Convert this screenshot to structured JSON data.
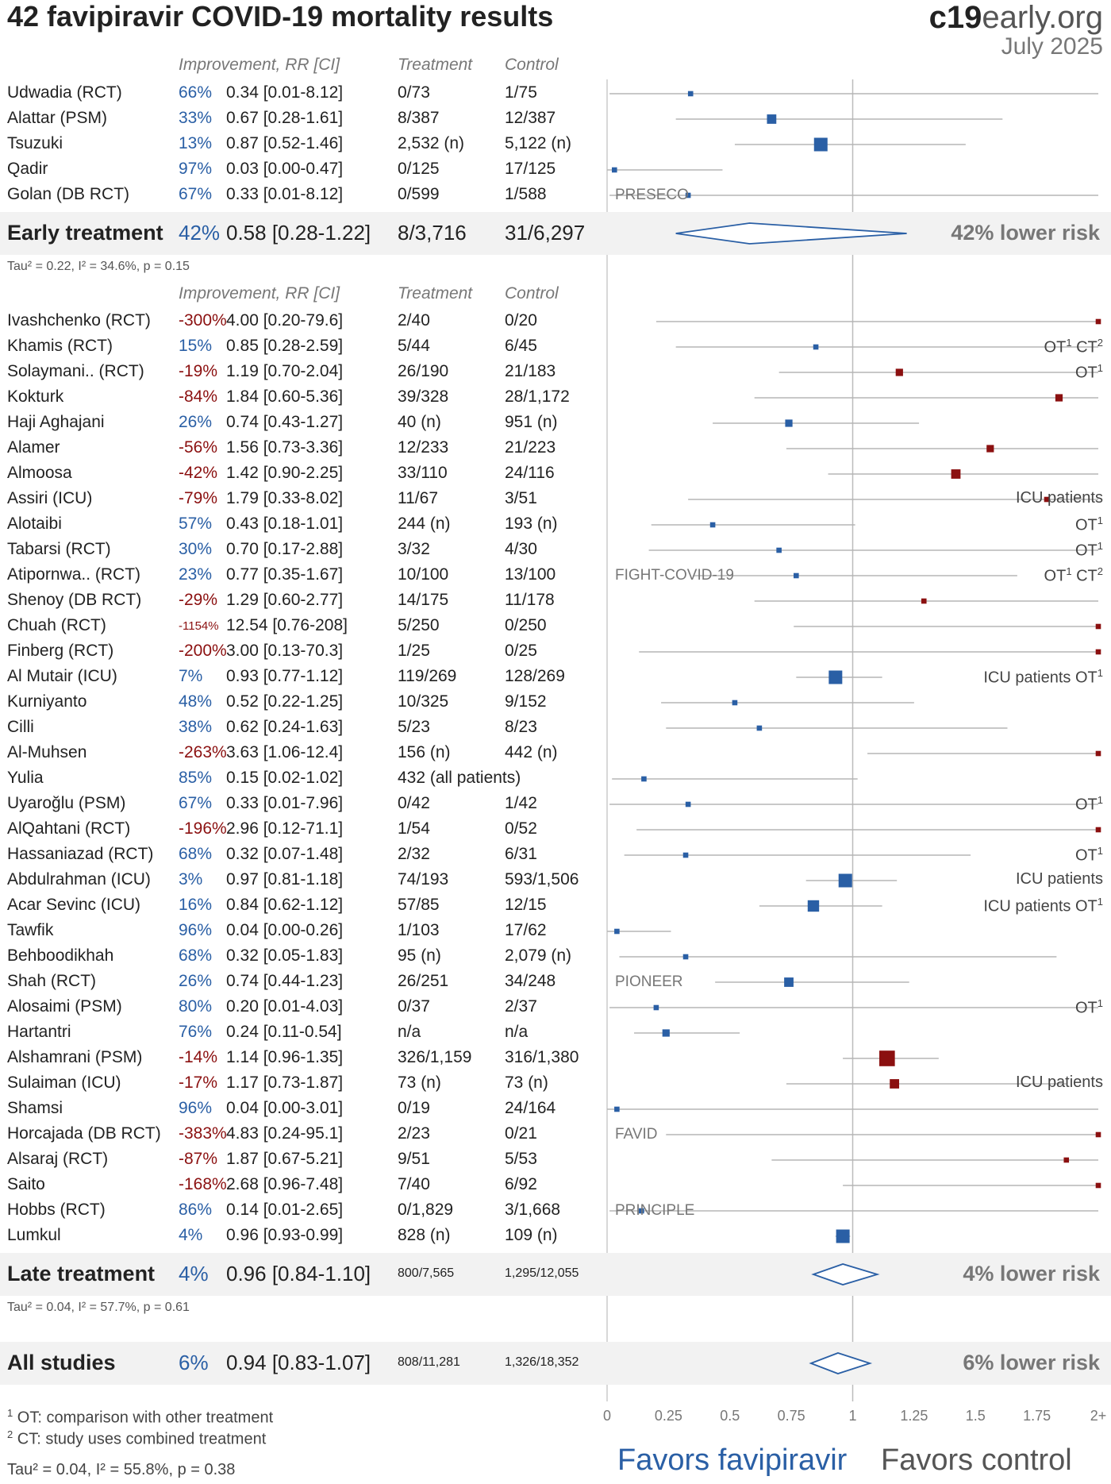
{
  "title": "42 favipiravir COVID-19 mortality results",
  "logo": {
    "bold": "c19",
    "rest": "early.org"
  },
  "date": "July 2025",
  "headers": {
    "improvement": "Improvement, RR [CI]",
    "treatment": "Treatment",
    "control": "Control"
  },
  "early_stat": "Tau² = 0.22, I² = 34.6%, p = 0.15",
  "late_stat": "Tau² = 0.04, I² = 57.7%, p = 0.61",
  "all_stat": "Tau² = 0.04, I² = 55.8%, p = 0.38",
  "footnotes": [
    "¹ OT: comparison with other treatment",
    "² CT: study uses combined treatment"
  ],
  "favors_left": "Favors favipiravir",
  "favors_right": "Favors control",
  "colors": {
    "favorable": "#2a5fa5",
    "unfavorable": "#8b1010",
    "band": "#f2f2f2"
  },
  "chart_data": {
    "type": "forest",
    "title": "42 favipiravir COVID-19 mortality results",
    "xlabel": "",
    "xlim": [
      0,
      2
    ],
    "x_ticks": [
      "0",
      "0.25",
      "0.5",
      "0.75",
      "1",
      "1.25",
      "1.5",
      "1.75",
      "2+"
    ],
    "groups": [
      {
        "name": "Early treatment",
        "summary": {
          "label": "Early treatment",
          "pct": "42%",
          "rr_text": "0.58 [0.28-1.22]",
          "treatment": "8/3,716",
          "control": "31/6,297",
          "rr": 0.58,
          "lo": 0.28,
          "hi": 1.22,
          "lower_risk": "42% lower risk"
        },
        "studies": [
          {
            "name": "Udwadia (RCT)",
            "pct": "66%",
            "rr_text": "0.34 [0.01-8.12]",
            "treatment": "0/73",
            "control": "1/75",
            "rr": 0.34,
            "lo": 0.01,
            "hi": 8.12,
            "weight": 1,
            "note": "",
            "trial": ""
          },
          {
            "name": "Alattar (PSM)",
            "pct": "33%",
            "rr_text": "0.67 [0.28-1.61]",
            "treatment": "8/387",
            "control": "12/387",
            "rr": 0.67,
            "lo": 0.28,
            "hi": 1.61,
            "weight": 3,
            "note": "",
            "trial": ""
          },
          {
            "name": "Tsuzuki",
            "pct": "13%",
            "rr_text": "0.87 [0.52-1.46]",
            "treatment": "2,532 (n)",
            "control": "5,122 (n)",
            "rr": 0.87,
            "lo": 0.52,
            "hi": 1.46,
            "weight": 5,
            "note": "",
            "trial": ""
          },
          {
            "name": "Qadir",
            "pct": "97%",
            "rr_text": "0.03 [0.00-0.47]",
            "treatment": "0/125",
            "control": "17/125",
            "rr": 0.03,
            "lo": 0.0,
            "hi": 0.47,
            "weight": 1,
            "note": "",
            "trial": ""
          },
          {
            "name": "Golan (DB RCT)",
            "pct": "67%",
            "rr_text": "0.33 [0.01-8.12]",
            "treatment": "0/599",
            "control": "1/588",
            "rr": 0.33,
            "lo": 0.01,
            "hi": 8.12,
            "weight": 1,
            "note": "",
            "trial": "PRESECO"
          }
        ]
      },
      {
        "name": "Late treatment",
        "summary": {
          "label": "Late treatment",
          "pct": "4%",
          "rr_text": "0.96 [0.84-1.10]",
          "treatment": "800/7,565",
          "control": "1,295/12,055",
          "rr": 0.96,
          "lo": 0.84,
          "hi": 1.1,
          "lower_risk": "4% lower risk"
        },
        "studies": [
          {
            "name": "Ivashchenko (RCT)",
            "pct": "-300%",
            "rr_text": "4.00 [0.20-79.6]",
            "treatment": "2/40",
            "control": "0/20",
            "rr": 4.0,
            "lo": 0.2,
            "hi": 79.6,
            "weight": 1,
            "note": "",
            "trial": ""
          },
          {
            "name": "Khamis (RCT)",
            "pct": "15%",
            "rr_text": "0.85 [0.28-2.59]",
            "treatment": "5/44",
            "control": "6/45",
            "rr": 0.85,
            "lo": 0.28,
            "hi": 2.59,
            "weight": 1,
            "note": "OT¹ CT²",
            "trial": ""
          },
          {
            "name": "Solaymani.. (RCT)",
            "pct": "-19%",
            "rr_text": "1.19 [0.70-2.04]",
            "treatment": "26/190",
            "control": "21/183",
            "rr": 1.19,
            "lo": 0.7,
            "hi": 2.04,
            "weight": 2,
            "note": "OT¹",
            "trial": ""
          },
          {
            "name": "Kokturk",
            "pct": "-84%",
            "rr_text": "1.84 [0.60-5.36]",
            "treatment": "39/328",
            "control": "28/1,172",
            "rr": 1.84,
            "lo": 0.6,
            "hi": 5.36,
            "weight": 2,
            "note": "",
            "trial": ""
          },
          {
            "name": "Haji Aghajani",
            "pct": "26%",
            "rr_text": "0.74 [0.43-1.27]",
            "treatment": "40 (n)",
            "control": "951 (n)",
            "rr": 0.74,
            "lo": 0.43,
            "hi": 1.27,
            "weight": 2,
            "note": "",
            "trial": ""
          },
          {
            "name": "Alamer",
            "pct": "-56%",
            "rr_text": "1.56 [0.73-3.36]",
            "treatment": "12/233",
            "control": "21/223",
            "rr": 1.56,
            "lo": 0.73,
            "hi": 3.36,
            "weight": 2,
            "note": "",
            "trial": ""
          },
          {
            "name": "Almoosa",
            "pct": "-42%",
            "rr_text": "1.42 [0.90-2.25]",
            "treatment": "33/110",
            "control": "24/116",
            "rr": 1.42,
            "lo": 0.9,
            "hi": 2.25,
            "weight": 3,
            "note": "",
            "trial": ""
          },
          {
            "name": "Assiri (ICU)",
            "pct": "-79%",
            "rr_text": "1.79 [0.33-8.02]",
            "treatment": "11/67",
            "control": "3/51",
            "rr": 1.79,
            "lo": 0.33,
            "hi": 8.02,
            "weight": 1,
            "note": "ICU patients",
            "trial": ""
          },
          {
            "name": "Alotaibi",
            "pct": "57%",
            "rr_text": "0.43 [0.18-1.01]",
            "treatment": "244 (n)",
            "control": "193 (n)",
            "rr": 0.43,
            "lo": 0.18,
            "hi": 1.01,
            "weight": 1,
            "note": "OT¹",
            "trial": ""
          },
          {
            "name": "Tabarsi (RCT)",
            "pct": "30%",
            "rr_text": "0.70 [0.17-2.88]",
            "treatment": "3/32",
            "control": "4/30",
            "rr": 0.7,
            "lo": 0.17,
            "hi": 2.88,
            "weight": 1,
            "note": "OT¹",
            "trial": ""
          },
          {
            "name": "Atipornwa.. (RCT)",
            "pct": "23%",
            "rr_text": "0.77 [0.35-1.67]",
            "treatment": "10/100",
            "control": "13/100",
            "rr": 0.77,
            "lo": 0.35,
            "hi": 1.67,
            "weight": 1,
            "note": "OT¹ CT²",
            "trial": "FIGHT-COVID-19"
          },
          {
            "name": "Shenoy (DB RCT)",
            "pct": "-29%",
            "rr_text": "1.29 [0.60-2.77]",
            "treatment": "14/175",
            "control": "11/178",
            "rr": 1.29,
            "lo": 0.6,
            "hi": 2.77,
            "weight": 1,
            "note": "",
            "trial": ""
          },
          {
            "name": "Chuah (RCT)",
            "pct": "-1154%",
            "rr_text": "12.54 [0.76-208]",
            "treatment": "5/250",
            "control": "0/250",
            "rr": 12.54,
            "lo": 0.76,
            "hi": 208,
            "weight": 1,
            "note": "",
            "trial": ""
          },
          {
            "name": "Finberg (RCT)",
            "pct": "-200%",
            "rr_text": "3.00 [0.13-70.3]",
            "treatment": "1/25",
            "control": "0/25",
            "rr": 3.0,
            "lo": 0.13,
            "hi": 70.3,
            "weight": 1,
            "note": "",
            "trial": ""
          },
          {
            "name": "Al Mutair (ICU)",
            "pct": "7%",
            "rr_text": "0.93 [0.77-1.12]",
            "treatment": "119/269",
            "control": "128/269",
            "rr": 0.93,
            "lo": 0.77,
            "hi": 1.12,
            "weight": 5,
            "note": "ICU patients OT¹",
            "trial": ""
          },
          {
            "name": "Kurniyanto",
            "pct": "48%",
            "rr_text": "0.52 [0.22-1.25]",
            "treatment": "10/325",
            "control": "9/152",
            "rr": 0.52,
            "lo": 0.22,
            "hi": 1.25,
            "weight": 1,
            "note": "",
            "trial": ""
          },
          {
            "name": "Cilli",
            "pct": "38%",
            "rr_text": "0.62 [0.24-1.63]",
            "treatment": "5/23",
            "control": "8/23",
            "rr": 0.62,
            "lo": 0.24,
            "hi": 1.63,
            "weight": 1,
            "note": "",
            "trial": ""
          },
          {
            "name": "Al-Muhsen",
            "pct": "-263%",
            "rr_text": "3.63 [1.06-12.4]",
            "treatment": "156 (n)",
            "control": "442 (n)",
            "rr": 3.63,
            "lo": 1.06,
            "hi": 12.4,
            "weight": 1,
            "note": "",
            "trial": ""
          },
          {
            "name": "Yulia",
            "pct": "85%",
            "rr_text": "0.15 [0.02-1.02]",
            "treatment": "432 (all patients)",
            "control": "",
            "rr": 0.15,
            "lo": 0.02,
            "hi": 1.02,
            "weight": 1,
            "note": "",
            "trial": ""
          },
          {
            "name": "Uyaroğlu (PSM)",
            "pct": "67%",
            "rr_text": "0.33 [0.01-7.96]",
            "treatment": "0/42",
            "control": "1/42",
            "rr": 0.33,
            "lo": 0.01,
            "hi": 7.96,
            "weight": 1,
            "note": "OT¹",
            "trial": ""
          },
          {
            "name": "AlQahtani (RCT)",
            "pct": "-196%",
            "rr_text": "2.96 [0.12-71.1]",
            "treatment": "1/54",
            "control": "0/52",
            "rr": 2.96,
            "lo": 0.12,
            "hi": 71.1,
            "weight": 1,
            "note": "",
            "trial": ""
          },
          {
            "name": "Hassaniazad (RCT)",
            "pct": "68%",
            "rr_text": "0.32 [0.07-1.48]",
            "treatment": "2/32",
            "control": "6/31",
            "rr": 0.32,
            "lo": 0.07,
            "hi": 1.48,
            "weight": 1,
            "note": "OT¹",
            "trial": ""
          },
          {
            "name": "Abdulrahman (ICU)",
            "pct": "3%",
            "rr_text": "0.97 [0.81-1.18]",
            "treatment": "74/193",
            "control": "593/1,506",
            "rr": 0.97,
            "lo": 0.81,
            "hi": 1.18,
            "weight": 5,
            "note": "ICU patients",
            "trial": ""
          },
          {
            "name": "Acar Sevinc (ICU)",
            "pct": "16%",
            "rr_text": "0.84 [0.62-1.12]",
            "treatment": "57/85",
            "control": "12/15",
            "rr": 0.84,
            "lo": 0.62,
            "hi": 1.12,
            "weight": 4,
            "note": "ICU patients OT¹",
            "trial": ""
          },
          {
            "name": "Tawfik",
            "pct": "96%",
            "rr_text": "0.04 [0.00-0.26]",
            "treatment": "1/103",
            "control": "17/62",
            "rr": 0.04,
            "lo": 0.0,
            "hi": 0.26,
            "weight": 1,
            "note": "",
            "trial": ""
          },
          {
            "name": "Behboodikhah",
            "pct": "68%",
            "rr_text": "0.32 [0.05-1.83]",
            "treatment": "95 (n)",
            "control": "2,079 (n)",
            "rr": 0.32,
            "lo": 0.05,
            "hi": 1.83,
            "weight": 1,
            "note": "",
            "trial": ""
          },
          {
            "name": "Shah (RCT)",
            "pct": "26%",
            "rr_text": "0.74 [0.44-1.23]",
            "treatment": "26/251",
            "control": "34/248",
            "rr": 0.74,
            "lo": 0.44,
            "hi": 1.23,
            "weight": 3,
            "note": "",
            "trial": "PIONEER"
          },
          {
            "name": "Alosaimi (PSM)",
            "pct": "80%",
            "rr_text": "0.20 [0.01-4.03]",
            "treatment": "0/37",
            "control": "2/37",
            "rr": 0.2,
            "lo": 0.01,
            "hi": 4.03,
            "weight": 1,
            "note": "OT¹",
            "trial": ""
          },
          {
            "name": "Hartantri",
            "pct": "76%",
            "rr_text": "0.24 [0.11-0.54]",
            "treatment": "n/a",
            "control": "n/a",
            "rr": 0.24,
            "lo": 0.11,
            "hi": 0.54,
            "weight": 2,
            "note": "",
            "trial": ""
          },
          {
            "name": "Alshamrani (PSM)",
            "pct": "-14%",
            "rr_text": "1.14 [0.96-1.35]",
            "treatment": "326/1,159",
            "control": "316/1,380",
            "rr": 1.14,
            "lo": 0.96,
            "hi": 1.35,
            "weight": 6,
            "note": "",
            "trial": ""
          },
          {
            "name": "Sulaiman (ICU)",
            "pct": "-17%",
            "rr_text": "1.17 [0.73-1.87]",
            "treatment": "73 (n)",
            "control": "73 (n)",
            "rr": 1.17,
            "lo": 0.73,
            "hi": 1.87,
            "weight": 3,
            "note": "ICU patients",
            "trial": ""
          },
          {
            "name": "Shamsi",
            "pct": "96%",
            "rr_text": "0.04 [0.00-3.01]",
            "treatment": "0/19",
            "control": "24/164",
            "rr": 0.04,
            "lo": 0.0,
            "hi": 3.01,
            "weight": 1,
            "note": "",
            "trial": ""
          },
          {
            "name": "Horcajada (DB RCT)",
            "pct": "-383%",
            "rr_text": "4.83 [0.24-95.1]",
            "treatment": "2/23",
            "control": "0/21",
            "rr": 4.83,
            "lo": 0.24,
            "hi": 95.1,
            "weight": 1,
            "note": "",
            "trial": "FAVID"
          },
          {
            "name": "Alsaraj (RCT)",
            "pct": "-87%",
            "rr_text": "1.87 [0.67-5.21]",
            "treatment": "9/51",
            "control": "5/53",
            "rr": 1.87,
            "lo": 0.67,
            "hi": 5.21,
            "weight": 1,
            "note": "",
            "trial": ""
          },
          {
            "name": "Saito",
            "pct": "-168%",
            "rr_text": "2.68 [0.96-7.48]",
            "treatment": "7/40",
            "control": "6/92",
            "rr": 2.68,
            "lo": 0.96,
            "hi": 7.48,
            "weight": 1,
            "note": "",
            "trial": ""
          },
          {
            "name": "Hobbs (RCT)",
            "pct": "86%",
            "rr_text": "0.14 [0.01-2.65]",
            "treatment": "0/1,829",
            "control": "3/1,668",
            "rr": 0.14,
            "lo": 0.01,
            "hi": 2.65,
            "weight": 1,
            "note": "",
            "trial": "PRINCIPLE"
          },
          {
            "name": "Lumkul",
            "pct": "4%",
            "rr_text": "0.96 [0.93-0.99]",
            "treatment": "828 (n)",
            "control": "109 (n)",
            "rr": 0.96,
            "lo": 0.93,
            "hi": 0.99,
            "weight": 5,
            "note": "",
            "trial": ""
          }
        ]
      }
    ],
    "overall": {
      "label": "All studies",
      "pct": "6%",
      "rr_text": "0.94 [0.83-1.07]",
      "treatment": "808/11,281",
      "control": "1,326/18,352",
      "rr": 0.94,
      "lo": 0.83,
      "hi": 1.07,
      "lower_risk": "6% lower risk"
    }
  }
}
